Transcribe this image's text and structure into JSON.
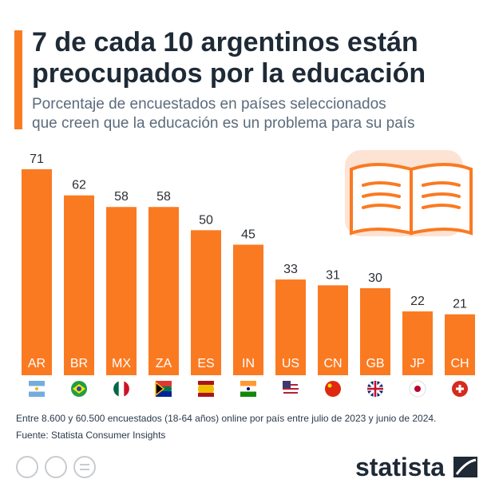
{
  "chart_data": {
    "type": "bar",
    "title": [
      "7 de cada 10 argentinos están",
      "preocupados por la educación"
    ],
    "subtitle": [
      "Porcentaje de encuestados en países seleccionados",
      "que creen que la educación es un problema para su país"
    ],
    "categories": [
      "AR",
      "BR",
      "MX",
      "ZA",
      "ES",
      "IN",
      "US",
      "CN",
      "GB",
      "JP",
      "CH"
    ],
    "values": [
      71,
      62,
      58,
      58,
      50,
      45,
      33,
      31,
      30,
      22,
      21
    ],
    "color": "#fa7a22",
    "note": "Entre 8.600 y 60.500 encuestados (18-64 años) online por país entre julio de 2023 y junio de 2024.",
    "source": "Fuente: Statista Consumer Insights",
    "brand": "statista"
  }
}
